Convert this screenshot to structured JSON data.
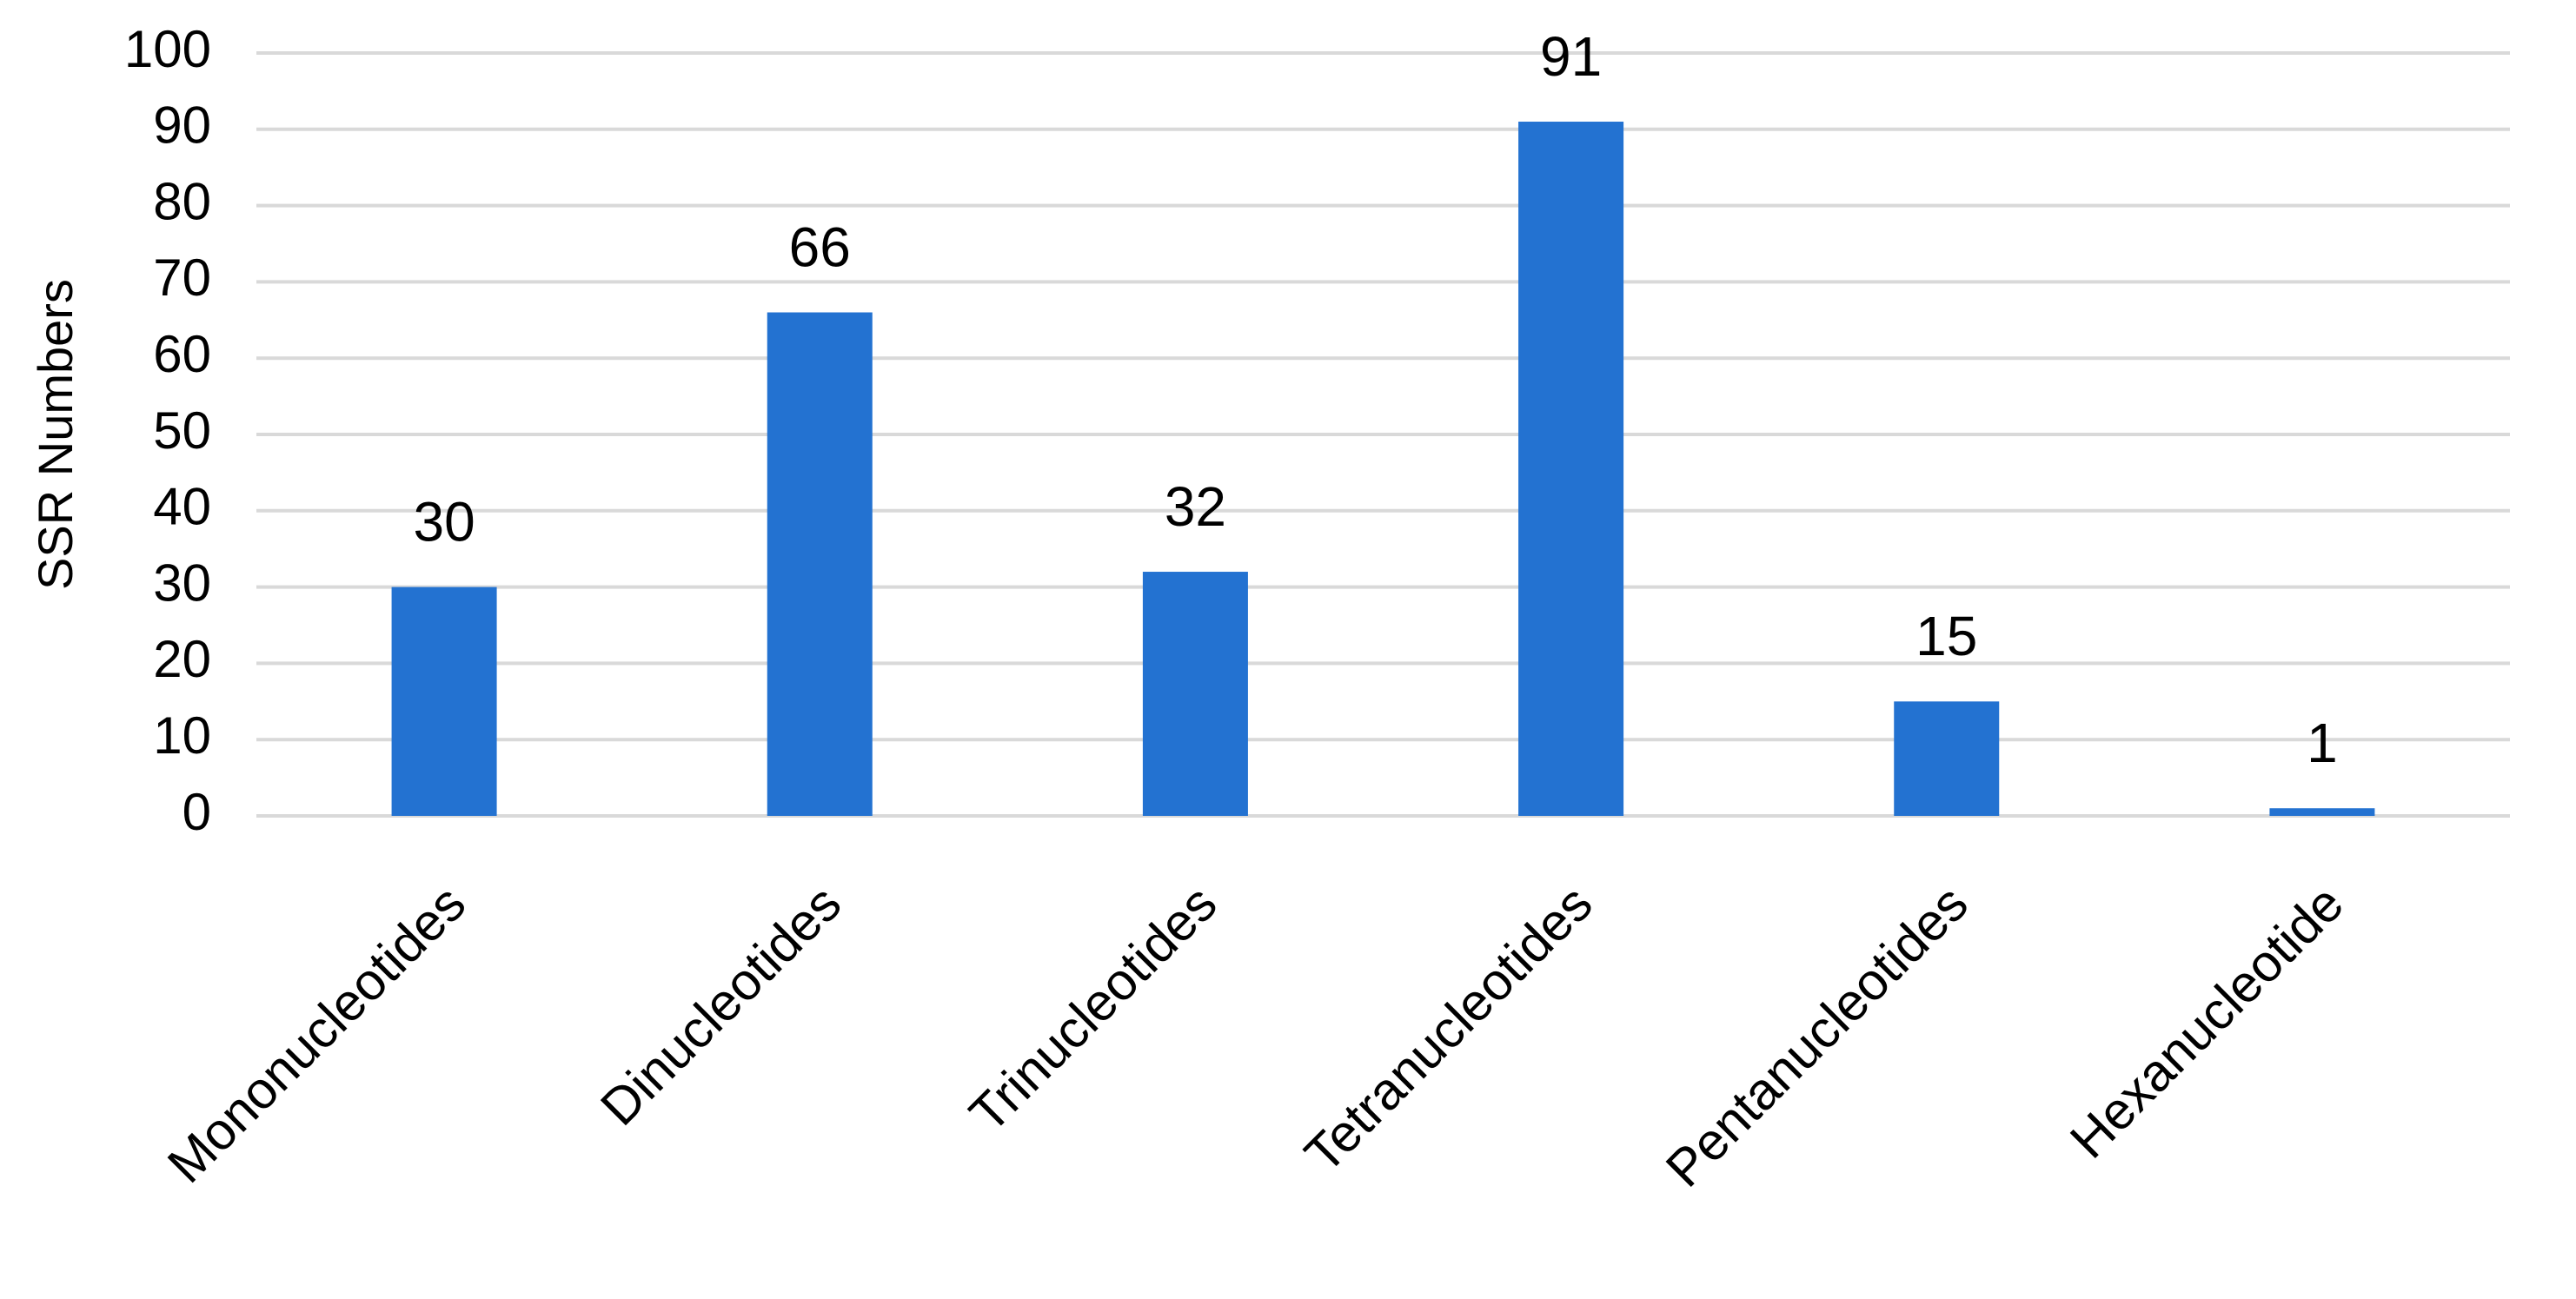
{
  "chart_data": {
    "type": "bar",
    "y_label": "SSR Numbers",
    "categories": [
      "Mononucleotides",
      "Dinucleotides",
      "Trinucleotides",
      "Tetranucleotides",
      "Pentanucleotides",
      "Hexanucleotide"
    ],
    "values": [
      30,
      66,
      32,
      91,
      15,
      1
    ],
    "color": "#2372d1",
    "ylim": [
      0,
      100
    ],
    "yticks": [
      0,
      10,
      20,
      30,
      40,
      50,
      60,
      70,
      80,
      90,
      100
    ],
    "grid": true
  }
}
